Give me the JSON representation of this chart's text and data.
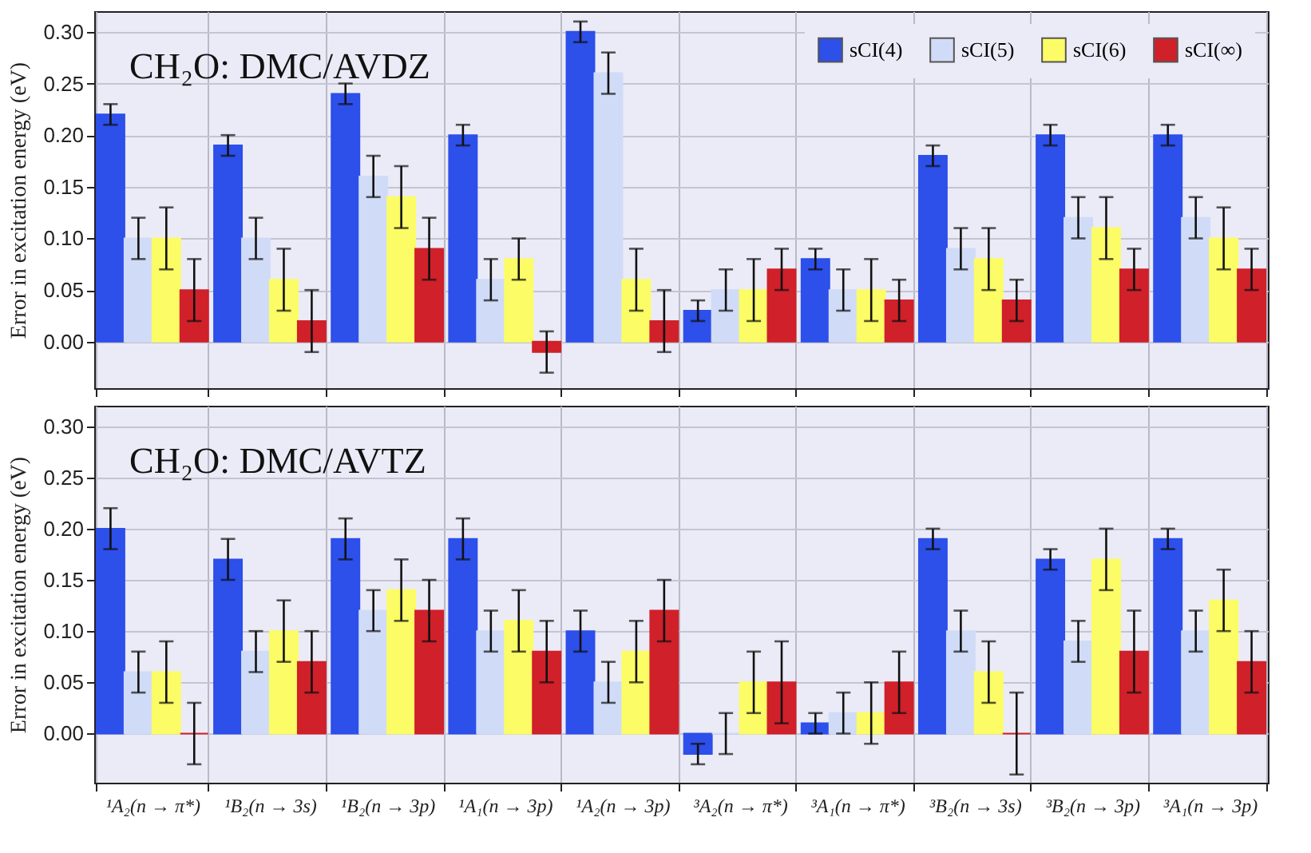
{
  "chart_data": [
    {
      "type": "bar",
      "title": "CH₂O: DMC/AVDZ",
      "ylabel": "Error in excitation energy (eV)",
      "categories": [
        null,
        null,
        null,
        null,
        null,
        null,
        null,
        null,
        null,
        null
      ],
      "series": [
        {
          "name": "sCI(4)",
          "color": "#2d4fea",
          "values": [
            0.22,
            0.19,
            0.24,
            0.2,
            0.3,
            0.03,
            0.08,
            0.18,
            0.2,
            0.2
          ],
          "errors": [
            0.01,
            0.01,
            0.01,
            0.01,
            0.01,
            0.01,
            0.01,
            0.01,
            0.01,
            0.01
          ]
        },
        {
          "name": "sCI(5)",
          "color": "#d0dcf7",
          "values": [
            0.1,
            0.1,
            0.16,
            0.06,
            0.26,
            0.05,
            0.05,
            0.09,
            0.12,
            0.12
          ],
          "errors": [
            0.02,
            0.02,
            0.02,
            0.02,
            0.02,
            0.02,
            0.02,
            0.02,
            0.02,
            0.02
          ]
        },
        {
          "name": "sCI(6)",
          "color": "#fcfc66",
          "values": [
            0.1,
            0.06,
            0.14,
            0.08,
            0.06,
            0.05,
            0.05,
            0.08,
            0.11,
            0.1
          ],
          "errors": [
            0.03,
            0.03,
            0.03,
            0.02,
            0.03,
            0.03,
            0.03,
            0.03,
            0.03,
            0.03
          ]
        },
        {
          "name": "sCI(∞)",
          "color": "#d0202a",
          "values": [
            0.05,
            0.02,
            0.09,
            -0.01,
            0.02,
            0.07,
            0.04,
            0.04,
            0.07,
            0.07
          ],
          "errors": [
            0.03,
            0.03,
            0.03,
            0.02,
            0.03,
            0.02,
            0.02,
            0.02,
            0.02,
            0.02
          ]
        }
      ],
      "ylim": [
        -0.045,
        0.32
      ],
      "yticks": [
        {
          "value": 0,
          "label": "0.00"
        },
        {
          "value": 0.05,
          "label": "0.05"
        },
        {
          "value": 0.1,
          "label": "0.10"
        },
        {
          "value": 0.15,
          "label": "0.15"
        },
        {
          "value": 0.2,
          "label": "0.20"
        },
        {
          "value": 0.25,
          "label": "0.25"
        },
        {
          "value": 0.3,
          "label": "0.30"
        }
      ],
      "grid": true,
      "legend": "top right",
      "tick_labels": "y"
    },
    {
      "type": "bar",
      "title": "CH₂O: DMC/AVTZ",
      "ylabel": "Error in excitation energy (eV)",
      "categories": [
        "¹A₂(n → π*)",
        "¹B₂(n → 3s)",
        "¹B₂(n → 3p)",
        "¹A₁(n → 3p)",
        "¹A₂(n → 3p)",
        "³A₂(n → π*)",
        "³A₁(n → π*)",
        "³B₂(n → 3s)",
        "³B₂(n → 3p)",
        "³A₁(n → 3p)"
      ],
      "series": [
        {
          "name": "sCI(4)",
          "color": "#2d4fea",
          "values": [
            0.2,
            0.17,
            0.19,
            0.19,
            0.1,
            -0.02,
            0.01,
            0.19,
            0.17,
            0.19
          ],
          "errors": [
            0.02,
            0.02,
            0.02,
            0.02,
            0.02,
            0.01,
            0.01,
            0.01,
            0.01,
            0.01
          ]
        },
        {
          "name": "sCI(5)",
          "color": "#d0dcf7",
          "values": [
            0.06,
            0.08,
            0.12,
            0.1,
            0.05,
            0.0,
            0.02,
            0.1,
            0.09,
            0.1
          ],
          "errors": [
            0.02,
            0.02,
            0.02,
            0.02,
            0.02,
            0.02,
            0.02,
            0.02,
            0.02,
            0.02
          ]
        },
        {
          "name": "sCI(6)",
          "color": "#fcfc66",
          "values": [
            0.06,
            0.1,
            0.14,
            0.11,
            0.08,
            0.05,
            0.02,
            0.06,
            0.17,
            0.13
          ],
          "errors": [
            0.03,
            0.03,
            0.03,
            0.03,
            0.03,
            0.03,
            0.03,
            0.03,
            0.03,
            0.03
          ]
        },
        {
          "name": "sCI(∞)",
          "color": "#d0202a",
          "values": [
            0.0,
            0.07,
            0.12,
            0.08,
            0.12,
            0.05,
            0.05,
            0.0,
            0.08,
            0.07
          ],
          "errors": [
            0.03,
            0.03,
            0.03,
            0.03,
            0.03,
            0.04,
            0.03,
            0.04,
            0.04,
            0.03
          ]
        }
      ],
      "ylim": [
        -0.048,
        0.32
      ],
      "yticks": [
        {
          "value": 0,
          "label": "0.00"
        },
        {
          "value": 0.05,
          "label": "0.05"
        },
        {
          "value": 0.1,
          "label": "0.10"
        },
        {
          "value": 0.15,
          "label": "0.15"
        },
        {
          "value": 0.2,
          "label": "0.20"
        },
        {
          "value": 0.25,
          "label": "0.25"
        },
        {
          "value": 0.3,
          "label": "0.30"
        }
      ],
      "grid": true
    }
  ]
}
